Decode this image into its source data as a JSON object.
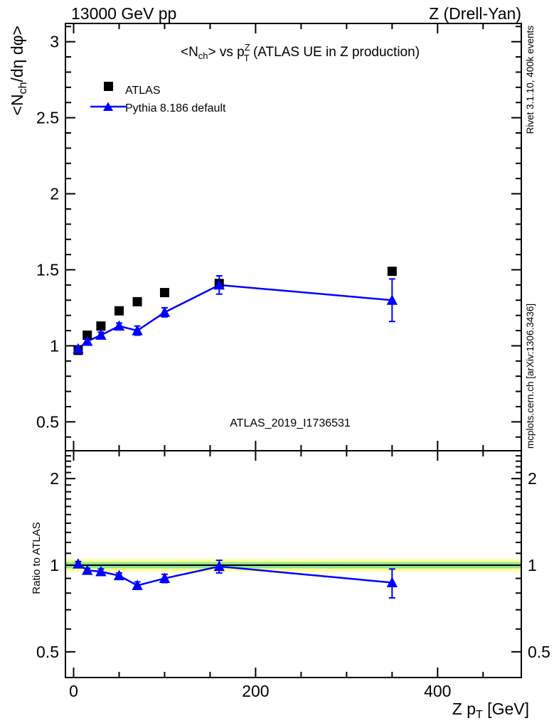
{
  "header": {
    "left": "13000 GeV pp",
    "right": "Z (Drell-Yan)"
  },
  "title": {
    "pre": "<N",
    "sub1": "ch",
    "mid": "> vs p",
    "sup": "Z",
    "sub2": "T",
    "post": " (ATLAS UE in Z production)"
  },
  "watermark": "ATLAS_2019_I1736531",
  "side_notes": {
    "top": "Rivet 3.1.10,  400k events",
    "bottom": "mcplots.cern.ch [arXiv:1306.3436]"
  },
  "legend": [
    {
      "label": "ATLAS",
      "marker": "black-square"
    },
    {
      "label": "Pythia 8.186 default",
      "marker": "blue-line-triangle"
    }
  ],
  "colors": {
    "atlas": "#000000",
    "pythia": "#0000ff",
    "band_yellow": "#ffff99",
    "band_green": "#8fe68f",
    "gray_text": "#8c8c8c",
    "watermark": "#b8b8b8"
  },
  "axes": {
    "x": {
      "label_pre": "Z p",
      "label_sub": "T",
      "label_post": " [GeV]",
      "min": -9,
      "max": 492,
      "majors": [
        0,
        200,
        400
      ],
      "minor_step": 50,
      "minor_max": 450
    },
    "y_main": {
      "label_pre": "<N",
      "label_sub": "ch",
      "label_post": "/dη dφ>",
      "min": 0.31,
      "max": 3.12,
      "majors": [
        0.5,
        1,
        1.5,
        2,
        2.5,
        3
      ]
    },
    "y_ratio": {
      "label": "Ratio to ATLAS",
      "min": 0.407,
      "max": 2.5,
      "scale": "log",
      "labeled": [
        2,
        1,
        0.5
      ]
    }
  },
  "chart_data": {
    "type": "scatter+line with ratio panel",
    "title": "<N_ch> vs p_T^Z (ATLAS UE in Z production)",
    "xlabel": "Z p_T [GeV]",
    "ylabel_main": "<N_ch/deta dphi>",
    "ylabel_ratio": "Ratio to ATLAS",
    "xlim": [
      -9,
      492
    ],
    "ylim_main": [
      0.31,
      3.12
    ],
    "ylim_ratio": [
      0.407,
      2.5
    ],
    "ratio_axis_scale": "log",
    "x": [
      5,
      15,
      30,
      50,
      70,
      100,
      160,
      350
    ],
    "series": [
      {
        "name": "ATLAS",
        "marker": "square",
        "color": "#000000",
        "line": false,
        "values": [
          0.97,
          1.07,
          1.13,
          1.23,
          1.29,
          1.35,
          1.41,
          1.49
        ]
      },
      {
        "name": "Pythia 8.186 default",
        "marker": "triangle",
        "color": "#0000ff",
        "line": true,
        "values": [
          0.98,
          1.03,
          1.07,
          1.13,
          1.1,
          1.22,
          1.4,
          1.3
        ],
        "errors": [
          0.02,
          0.02,
          0.02,
          0.02,
          0.03,
          0.03,
          0.06,
          0.14
        ]
      }
    ],
    "ratio": {
      "reference": "ATLAS",
      "values": [
        1.01,
        0.96,
        0.95,
        0.92,
        0.85,
        0.9,
        0.99,
        0.87
      ],
      "errors": [
        0.02,
        0.015,
        0.02,
        0.02,
        0.025,
        0.03,
        0.05,
        0.1
      ],
      "reference_line": 1.0,
      "bands": [
        {
          "color": "#ffff99",
          "lo": 0.95,
          "hi": 1.05
        },
        {
          "color": "#8fe68f",
          "lo": 0.975,
          "hi": 1.025
        }
      ]
    },
    "legend_position": "top-left-inside",
    "grid": false
  }
}
